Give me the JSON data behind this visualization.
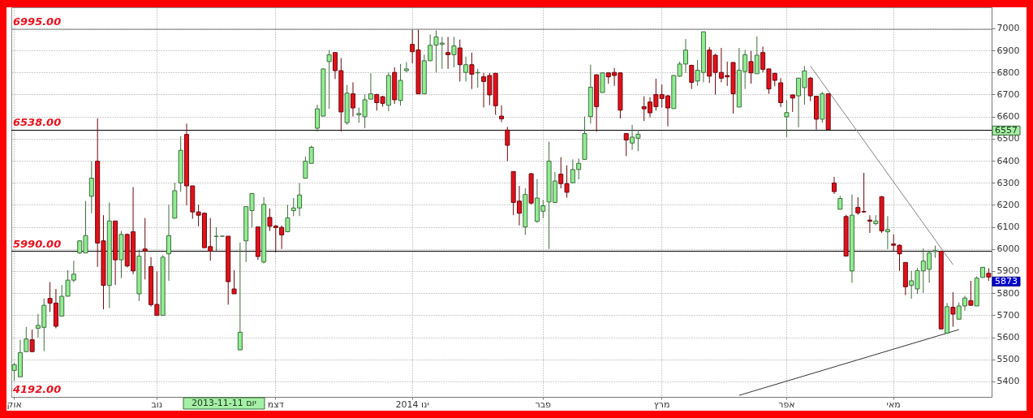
{
  "chart_data": {
    "type": "candlestick",
    "categories": [
      "אוק",
      null,
      null,
      null,
      null,
      null,
      null,
      null,
      null,
      null,
      null,
      null,
      null,
      null,
      null,
      null,
      null,
      null,
      null,
      null,
      null,
      null,
      null,
      null,
      "נוב",
      null,
      null,
      null,
      null,
      null,
      null,
      null,
      null,
      null,
      null,
      null,
      null,
      null,
      null,
      null,
      null,
      null,
      null,
      null,
      "דצמ",
      null,
      null,
      null,
      null,
      null,
      null,
      null,
      null,
      null,
      null,
      null,
      null,
      null,
      null,
      null,
      null,
      null,
      null,
      null,
      null,
      null,
      null,
      "ינו 2014",
      null,
      null,
      null,
      null,
      null,
      null,
      null,
      null,
      null,
      null,
      null,
      null,
      null,
      null,
      null,
      null,
      null,
      null,
      null,
      null,
      null,
      "פבר",
      null,
      null,
      null,
      null,
      null,
      null,
      null,
      null,
      null,
      null,
      null,
      null,
      null,
      null,
      null,
      null,
      null,
      null,
      null,
      "מרץ",
      null,
      null,
      null,
      null,
      null,
      null,
      null,
      null,
      null,
      null,
      null,
      null,
      null,
      null,
      null,
      null,
      null,
      null,
      null,
      null,
      "אפר",
      null,
      null,
      null,
      null,
      null,
      null,
      null,
      null,
      null,
      null,
      null,
      null,
      null,
      null,
      null,
      null,
      null,
      "מאי",
      null,
      null,
      null,
      null,
      null,
      null,
      null,
      null,
      null,
      null,
      null,
      null,
      null,
      null,
      null,
      null
    ],
    "ohlc": [
      [
        5450,
        5485,
        5403,
        5476
      ],
      [
        5421,
        5589,
        5421,
        5531
      ],
      [
        5535,
        5647,
        5535,
        5592
      ],
      [
        5589,
        5635,
        5535,
        5535
      ],
      [
        5641,
        5706,
        5599,
        5654
      ],
      [
        5645,
        5776,
        5537,
        5745
      ],
      [
        5776,
        5850,
        5715,
        5755
      ],
      [
        5755,
        5819,
        5641,
        5650
      ],
      [
        5696,
        5837,
        5696,
        5786
      ],
      [
        5786,
        5904,
        5786,
        5859
      ],
      [
        5859,
        5947,
        5849,
        5886
      ],
      [
        5982,
        6039,
        5978,
        6037
      ],
      [
        5982,
        6217,
        5982,
        6061
      ],
      [
        6239,
        6398,
        6162,
        6321
      ],
      [
        6398,
        6592,
        5919,
        6027
      ],
      [
        6037,
        6153,
        5727,
        5835
      ],
      [
        5835,
        6211,
        5733,
        6127
      ],
      [
        6127,
        6127,
        5837,
        5951
      ],
      [
        5951,
        6082,
        5868,
        6066
      ],
      [
        6066,
        6070,
        5917,
        5923
      ],
      [
        6078,
        6280,
        5886,
        5901
      ],
      [
        5797,
        5996,
        5764,
        5968
      ],
      [
        6000,
        6140,
        5862,
        5990
      ],
      [
        5920,
        5963,
        5739,
        5748
      ],
      [
        5749,
        5898,
        5699,
        5699
      ],
      [
        5699,
        5972,
        5699,
        5963
      ],
      [
        5978,
        6200,
        5856,
        6061
      ],
      [
        6140,
        6300,
        6137,
        6264
      ],
      [
        6299,
        6510,
        6259,
        6447
      ],
      [
        6519,
        6568,
        6198,
        6286
      ],
      [
        6286,
        6286,
        6137,
        6168
      ],
      [
        6168,
        6201,
        6103,
        6153
      ],
      [
        6162,
        6166,
        6006,
        6006
      ],
      [
        6011,
        6140,
        5947,
        5990
      ],
      [
        6057,
        6098,
        5990,
        6058
      ],
      [
        6058,
        6058,
        6058,
        6058
      ],
      [
        6058,
        6058,
        5748,
        5852
      ],
      [
        5819,
        5904,
        5797,
        5797
      ],
      [
        5543,
        6029,
        5543,
        5623
      ],
      [
        6037,
        6192,
        5941,
        6192
      ],
      [
        6174,
        6251,
        6098,
        6251
      ],
      [
        6100,
        6100,
        5951,
        5966
      ],
      [
        5941,
        6235,
        5935,
        6202
      ],
      [
        6143,
        6184,
        6082,
        6103
      ],
      [
        6104,
        6109,
        5984,
        6097
      ],
      [
        6098,
        6106,
        6000,
        6064
      ],
      [
        6078,
        6200,
        6078,
        6141
      ],
      [
        6174,
        6231,
        6149,
        6186
      ],
      [
        6186,
        6299,
        6149,
        6245
      ],
      [
        6321,
        6419,
        6321,
        6398
      ],
      [
        6388,
        6468,
        6388,
        6461
      ],
      [
        6547,
        6654,
        6532,
        6635
      ],
      [
        6602,
        6816,
        6602,
        6816
      ],
      [
        6849,
        6902,
        6635,
        6880
      ],
      [
        6890,
        6890,
        6770,
        6808
      ],
      [
        6808,
        6865,
        6532,
        6621
      ],
      [
        6572,
        6743,
        6563,
        6706
      ],
      [
        6703,
        6755,
        6600,
        6639
      ],
      [
        6608,
        6641,
        6572,
        6614
      ],
      [
        6599,
        6700,
        6547,
        6676
      ],
      [
        6679,
        6796,
        6679,
        6703
      ],
      [
        6700,
        6703,
        6627,
        6663
      ],
      [
        6690,
        6694,
        6645,
        6660
      ],
      [
        6651,
        6800,
        6624,
        6786
      ],
      [
        6800,
        6823,
        6657,
        6676
      ],
      [
        6673,
        6838,
        6649,
        6764
      ],
      [
        6808,
        6847,
        6800,
        6816
      ],
      [
        6927,
        6993,
        6841,
        6894
      ],
      [
        6902,
        6994,
        6703,
        6703
      ],
      [
        6703,
        6881,
        6703,
        6853
      ],
      [
        6853,
        6972,
        6853,
        6923
      ],
      [
        6924,
        6990,
        6800,
        6961
      ],
      [
        6927,
        6961,
        6816,
        6933
      ],
      [
        6890,
        6961,
        6816,
        6880
      ],
      [
        6880,
        6961,
        6823,
        6920
      ],
      [
        6911,
        6949,
        6759,
        6835
      ],
      [
        6800,
        6871,
        6759,
        6835
      ],
      [
        6835,
        6890,
        6725,
        6792
      ],
      [
        6798,
        6816,
        6731,
        6800
      ],
      [
        6780,
        6798,
        6641,
        6759
      ],
      [
        6786,
        6798,
        6651,
        6698
      ],
      [
        6796,
        6798,
        6608,
        6649
      ],
      [
        6602,
        6651,
        6575,
        6590
      ],
      [
        6539,
        6553,
        6398,
        6470
      ],
      [
        6351,
        6351,
        6153,
        6211
      ],
      [
        6217,
        6286,
        6107,
        6162
      ],
      [
        6100,
        6275,
        6064,
        6247
      ],
      [
        6341,
        6345,
        6202,
        6208
      ],
      [
        6125,
        6317,
        6119,
        6231
      ],
      [
        6171,
        6223,
        6140,
        6196
      ],
      [
        6213,
        6486,
        6000,
        6398
      ],
      [
        6211,
        6349,
        6211,
        6308
      ],
      [
        6339,
        6416,
        6275,
        6296
      ],
      [
        6296,
        6379,
        6233,
        6257
      ],
      [
        6300,
        6406,
        6300,
        6360
      ],
      [
        6360,
        6410,
        6315,
        6388
      ],
      [
        6406,
        6600,
        6406,
        6523
      ],
      [
        6600,
        6835,
        6568,
        6733
      ],
      [
        6789,
        6792,
        6531,
        6645
      ],
      [
        6709,
        6800,
        6709,
        6798
      ],
      [
        6798,
        6800,
        6749,
        6780
      ],
      [
        6800,
        6820,
        6739,
        6786
      ],
      [
        6798,
        6800,
        6592,
        6629
      ],
      [
        6523,
        6526,
        6421,
        6494
      ],
      [
        6480,
        6562,
        6449,
        6507
      ],
      [
        6502,
        6539,
        6443,
        6520
      ],
      [
        6645,
        6692,
        6580,
        6635
      ],
      [
        6666,
        6688,
        6596,
        6617
      ],
      [
        6700,
        6771,
        6627,
        6645
      ],
      [
        6700,
        6745,
        6641,
        6682
      ],
      [
        6694,
        6698,
        6556,
        6639
      ],
      [
        6636,
        6788,
        6636,
        6786
      ],
      [
        6783,
        6849,
        6780,
        6838
      ],
      [
        6838,
        6951,
        6798,
        6901
      ],
      [
        6832,
        6835,
        6725,
        6755
      ],
      [
        6761,
        6857,
        6739,
        6810
      ],
      [
        6800,
        6984,
        6755,
        6984
      ],
      [
        6901,
        6914,
        6752,
        6783
      ],
      [
        6878,
        6884,
        6700,
        6800
      ],
      [
        6800,
        6911,
        6755,
        6774
      ],
      [
        6786,
        6849,
        6739,
        6780
      ],
      [
        6845,
        6847,
        6614,
        6703
      ],
      [
        6643,
        6911,
        6643,
        6810
      ],
      [
        6804,
        6902,
        6725,
        6880
      ],
      [
        6849,
        6898,
        6749,
        6798
      ],
      [
        6794,
        6963,
        6794,
        6878
      ],
      [
        6890,
        6917,
        6800,
        6814
      ],
      [
        6816,
        6816,
        6703,
        6725
      ],
      [
        6796,
        6798,
        6737,
        6764
      ],
      [
        6753,
        6774,
        6643,
        6663
      ],
      [
        6599,
        6676,
        6507,
        6618
      ],
      [
        6698,
        6700,
        6621,
        6684
      ],
      [
        6694,
        6776,
        6551,
        6774
      ],
      [
        6731,
        6829,
        6654,
        6807
      ],
      [
        6774,
        6780,
        6670,
        6694
      ],
      [
        6692,
        6694,
        6541,
        6588
      ],
      [
        6588,
        6712,
        6572,
        6703
      ],
      [
        6703,
        6705,
        6541,
        6541
      ],
      [
        6299,
        6327,
        6250,
        6260
      ],
      [
        6180,
        6241,
        6180,
        6229
      ],
      [
        6147,
        6155,
        5968,
        5968
      ],
      [
        5901,
        6247,
        5847,
        6153
      ],
      [
        6188,
        6235,
        6155,
        6164
      ],
      [
        6170,
        6345,
        6165,
        6168
      ],
      [
        6131,
        6153,
        6073,
        6126
      ],
      [
        6115,
        6153,
        6107,
        6127
      ],
      [
        6237,
        6240,
        6073,
        6082
      ],
      [
        6078,
        6149,
        6000,
        6088
      ],
      [
        6023,
        6066,
        5988,
        6017
      ],
      [
        6017,
        6021,
        5901,
        5978
      ],
      [
        5939,
        5941,
        5791,
        5829
      ],
      [
        5835,
        5901,
        5775,
        5856
      ],
      [
        5819,
        5914,
        5797,
        5902
      ],
      [
        5901,
        6002,
        5800,
        5945
      ],
      [
        5908,
        5993,
        5847,
        5982
      ],
      [
        5988,
        6015,
        5960,
        5993
      ],
      [
        5990,
        5993,
        5638,
        5638
      ],
      [
        5619,
        5755,
        5619,
        5739
      ],
      [
        5736,
        5804,
        5648,
        5705
      ],
      [
        5682,
        5758,
        5682,
        5742
      ],
      [
        5742,
        5788,
        5721,
        5778
      ],
      [
        5766,
        5856,
        5743,
        5745
      ],
      [
        5742,
        5876,
        5742,
        5868
      ],
      [
        5871,
        5919,
        5871,
        5917
      ],
      [
        5890,
        5913,
        5856,
        5873
      ]
    ],
    "colors": [
      "#90ee90",
      "#90ee90",
      "#90ee90",
      "#e3101a",
      "#90ee90",
      "#90ee90",
      "#e3101a",
      "#e3101a",
      "#90ee90",
      "#90ee90",
      "#90ee90",
      "#90ee90",
      "#90ee90",
      "#90ee90",
      "#e3101a",
      "#e3101a",
      "#90ee90",
      "#e3101a",
      "#90ee90",
      "#e3101a",
      "#e3101a",
      "#90ee90",
      "#e3101a",
      "#e3101a",
      "#e3101a",
      "#90ee90",
      "#90ee90",
      "#90ee90",
      "#90ee90",
      "#e3101a",
      "#e3101a",
      "#e3101a",
      "#e3101a",
      "#e3101a",
      "#90ee90",
      "#3c643c",
      "#e3101a",
      "#e3101a",
      "#90ee90",
      "#90ee90",
      "#90ee90",
      "#e3101a",
      "#90ee90",
      "#e3101a",
      "#e3101a",
      "#e3101a",
      "#90ee90",
      "#90ee90",
      "#90ee90",
      "#90ee90",
      "#90ee90",
      "#90ee90",
      "#90ee90",
      "#90ee90",
      "#e3101a",
      "#e3101a",
      "#90ee90",
      "#e3101a",
      "#90ee90",
      "#90ee90",
      "#90ee90",
      "#e3101a",
      "#e3101a",
      "#90ee90",
      "#e3101a",
      "#90ee90",
      "#90ee90",
      "#e3101a",
      "#e3101a",
      "#90ee90",
      "#90ee90",
      "#90ee90",
      "#90ee90",
      "#e3101a",
      "#90ee90",
      "#e3101a",
      "#90ee90",
      "#e3101a",
      "#90ee90",
      "#e3101a",
      "#e3101a",
      "#e3101a",
      "#e3101a",
      "#e3101a",
      "#e3101a",
      "#e3101a",
      "#90ee90",
      "#e3101a",
      "#90ee90",
      "#90ee90",
      "#90ee90",
      "#90ee90",
      "#e3101a",
      "#e3101a",
      "#90ee90",
      "#90ee90",
      "#90ee90",
      "#90ee90",
      "#e3101a",
      "#90ee90",
      "#e3101a",
      "#e3101a",
      "#e3101a",
      "#e3101a",
      "#90ee90",
      "#90ee90",
      "#e3101a",
      "#e3101a",
      "#e3101a",
      "#e3101a",
      "#e3101a",
      "#90ee90",
      "#90ee90",
      "#90ee90",
      "#e3101a",
      "#90ee90",
      "#90ee90",
      "#e3101a",
      "#e3101a",
      "#e3101a",
      "#e3101a",
      "#e3101a",
      "#90ee90",
      "#90ee90",
      "#e3101a",
      "#90ee90",
      "#e3101a",
      "#e3101a",
      "#e3101a",
      "#e3101a",
      "#90ee90",
      "#e3101a",
      "#90ee90",
      "#90ee90",
      "#e3101a",
      "#e3101a",
      "#90ee90",
      "#e3101a",
      "#e3101a",
      "#90ee90",
      "#e3101a",
      "#90ee90",
      "#e3101a",
      "#e3101a",
      "#e3101a",
      "#90ee90",
      "#e3101a",
      "#90ee90",
      "#e3101a",
      "#e3101a",
      "#e3101a",
      "#90ee90",
      "#90ee90",
      "#90ee90",
      "#90ee90",
      "#90ee90",
      "#e3101a",
      "#90ee90",
      "#e3101a",
      "#90ee90",
      "#90ee90",
      "#e3101a",
      "#90ee90",
      "#90ee90",
      "#e3101a"
    ],
    "series": [
      {
        "type": "line",
        "color": "#808080",
        "values": [
          null,
          null,
          null,
          null,
          null,
          null,
          null,
          null,
          null,
          null,
          null,
          null,
          null,
          null,
          null,
          null,
          null,
          null,
          null,
          null,
          null,
          null,
          null,
          null,
          null,
          null,
          null,
          null,
          null,
          null,
          null,
          null,
          null,
          null,
          null,
          null,
          null,
          null,
          null,
          null,
          null,
          null,
          null,
          null,
          null,
          null,
          null,
          null,
          null,
          null,
          null,
          null,
          null,
          null,
          null,
          null,
          null,
          null,
          null,
          null,
          null,
          null,
          null,
          null,
          null,
          null,
          null,
          null,
          null,
          null,
          null,
          null,
          null,
          null,
          null,
          null,
          null,
          null,
          null,
          null,
          null,
          null,
          null,
          null,
          null,
          null,
          null,
          null,
          null,
          null,
          null,
          null,
          null,
          null,
          null,
          null,
          null,
          null,
          null,
          null,
          null,
          null,
          null,
          null,
          null,
          null,
          null,
          null,
          null,
          null,
          null,
          null,
          null,
          null,
          null,
          null,
          null,
          null,
          null,
          null,
          null,
          null,
          null,
          null,
          null,
          null,
          null,
          null,
          null,
          null,
          null,
          null,
          null,
          null,
          6829,
          null,
          null,
          null,
          null,
          null,
          null,
          null,
          null,
          null,
          null,
          null,
          null,
          null,
          null,
          null,
          null,
          null,
          null,
          null,
          null,
          null,
          null,
          null,
          5929,
          null,
          null,
          null,
          null,
          null,
          null
        ]
      },
      {
        "type": "line",
        "color": "#333333",
        "values": [
          null,
          null,
          null,
          null,
          null,
          null,
          null,
          null,
          null,
          null,
          null,
          null,
          null,
          null,
          null,
          null,
          null,
          null,
          null,
          null,
          null,
          null,
          null,
          null,
          null,
          null,
          null,
          null,
          null,
          null,
          null,
          null,
          null,
          null,
          null,
          null,
          null,
          null,
          null,
          null,
          null,
          null,
          null,
          null,
          null,
          null,
          null,
          null,
          null,
          null,
          null,
          null,
          null,
          null,
          null,
          null,
          null,
          null,
          null,
          null,
          null,
          null,
          null,
          null,
          null,
          null,
          null,
          null,
          null,
          null,
          null,
          null,
          null,
          null,
          null,
          null,
          null,
          null,
          null,
          null,
          null,
          null,
          null,
          null,
          null,
          null,
          null,
          null,
          null,
          null,
          null,
          null,
          null,
          null,
          null,
          null,
          null,
          null,
          null,
          null,
          null,
          null,
          null,
          null,
          null,
          null,
          null,
          null,
          null,
          null,
          null,
          null,
          null,
          null,
          null,
          null,
          null,
          null,
          null,
          null,
          null,
          null,
          5337,
          null,
          null,
          null,
          null,
          null,
          null,
          null,
          null,
          null,
          null,
          null,
          null,
          null,
          null,
          null,
          null,
          null,
          null,
          null,
          null,
          null,
          null,
          null,
          null,
          null,
          null,
          null,
          null,
          null,
          null,
          null,
          null,
          null,
          null,
          null,
          null,
          5635,
          null,
          null,
          null,
          null,
          null
        ]
      }
    ],
    "ylim": [
      5330,
      7095
    ],
    "yticks": [
      5400,
      5500,
      5600,
      5700,
      5800,
      5900,
      6000,
      6100,
      6200,
      6300,
      6400,
      6500,
      6600,
      6700,
      6800,
      6900,
      7000
    ],
    "grid": true,
    "ref_lines": [
      {
        "axis": "y",
        "value": 6995,
        "label": "6995.00",
        "color": "#808080"
      },
      {
        "axis": "y",
        "value": 6538,
        "label": "6538.00",
        "color": "#000000"
      },
      {
        "axis": "y",
        "value": 5990,
        "label": "5990.00",
        "color": "#000000"
      }
    ],
    "annotations": [
      "4192.00",
      "יום 2013-11-11",
      "6557",
      "5873"
    ]
  }
}
